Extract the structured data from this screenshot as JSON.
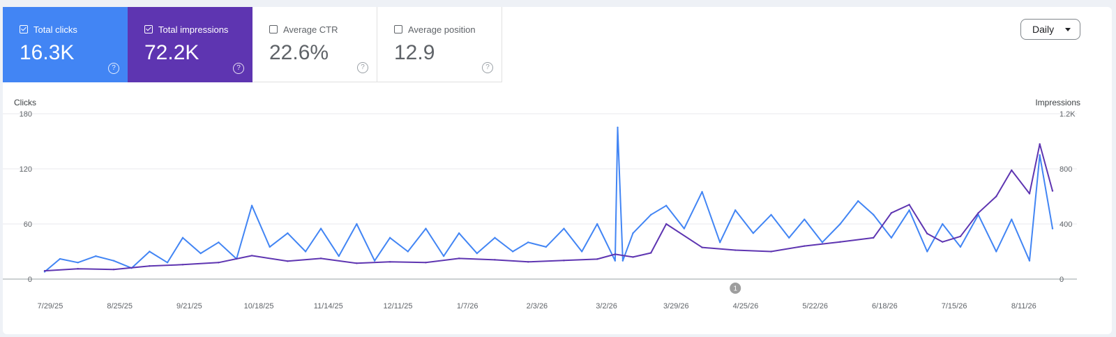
{
  "metrics": [
    {
      "label": "Total clicks",
      "value": "16.3K",
      "checked": true,
      "color": "#4285f4"
    },
    {
      "label": "Total impressions",
      "value": "72.2K",
      "checked": true,
      "color": "#5e35b1"
    },
    {
      "label": "Average CTR",
      "value": "22.6%",
      "checked": false
    },
    {
      "label": "Average position",
      "value": "12.9",
      "checked": false
    }
  ],
  "help_glyph": "?",
  "dropdown": {
    "label": "Daily",
    "icon": "chevron-down-icon"
  },
  "annotation": {
    "label": "1",
    "date": "4/25/26"
  },
  "chart_data": {
    "type": "line",
    "y_left": {
      "label": "Clicks",
      "ticks": [
        0,
        60,
        120,
        180
      ],
      "range": [
        0,
        180
      ]
    },
    "y_right": {
      "label": "Impressions",
      "ticks": [
        "0",
        "400",
        "800",
        "1.2K"
      ],
      "range": [
        0,
        1200
      ]
    },
    "x_ticks": [
      "7/29/25",
      "8/25/25",
      "9/21/25",
      "10/18/25",
      "11/14/25",
      "12/11/25",
      "1/7/26",
      "2/3/26",
      "3/2/26",
      "3/29/26",
      "4/25/26",
      "5/22/26",
      "6/18/26",
      "7/15/26",
      "8/11/26"
    ],
    "series": [
      {
        "name": "Clicks",
        "axis": "left",
        "color": "#4285f4",
        "x": [
          "7/29/25",
          "8/4/25",
          "8/11/25",
          "8/18/25",
          "8/25/25",
          "9/1/25",
          "9/8/25",
          "9/15/25",
          "9/21/25",
          "9/28/25",
          "10/5/25",
          "10/12/25",
          "10/18/25",
          "10/25/25",
          "11/1/25",
          "11/8/25",
          "11/14/25",
          "11/21/25",
          "11/28/25",
          "12/5/25",
          "12/11/25",
          "12/18/25",
          "12/25/25",
          "1/1/26",
          "1/7/26",
          "1/14/26",
          "1/21/26",
          "1/28/26",
          "2/3/26",
          "2/10/26",
          "2/17/26",
          "2/24/26",
          "3/2/26",
          "3/9/26",
          "3/10/26",
          "3/12/26",
          "3/16/26",
          "3/23/26",
          "3/29/26",
          "4/5/26",
          "4/12/26",
          "4/19/26",
          "4/25/26",
          "5/2/26",
          "5/9/26",
          "5/16/26",
          "5/22/26",
          "5/29/26",
          "6/5/26",
          "6/12/26",
          "6/18/26",
          "6/25/26",
          "7/2/26",
          "7/9/26",
          "7/15/26",
          "7/22/26",
          "7/29/26",
          "8/5/26",
          "8/11/26",
          "8/18/26",
          "8/22/26",
          "8/27/26"
        ],
        "values": [
          8,
          22,
          18,
          25,
          20,
          12,
          30,
          18,
          45,
          28,
          40,
          22,
          80,
          35,
          50,
          30,
          55,
          25,
          60,
          20,
          45,
          30,
          55,
          25,
          50,
          28,
          45,
          30,
          40,
          35,
          55,
          30,
          60,
          20,
          165,
          20,
          50,
          70,
          80,
          55,
          95,
          40,
          75,
          50,
          70,
          45,
          65,
          40,
          60,
          85,
          70,
          45,
          75,
          30,
          60,
          35,
          70,
          30,
          65,
          20,
          135,
          55
        ]
      },
      {
        "name": "Impressions",
        "axis": "right",
        "color": "#5e35b1",
        "x": [
          "7/29/25",
          "8/11/25",
          "8/25/25",
          "9/8/25",
          "9/21/25",
          "10/5/25",
          "10/18/25",
          "11/1/25",
          "11/14/25",
          "11/28/25",
          "12/11/25",
          "12/25/25",
          "1/7/26",
          "1/21/26",
          "2/3/26",
          "2/17/26",
          "3/2/26",
          "3/9/26",
          "3/16/26",
          "3/23/26",
          "3/29/26",
          "4/12/26",
          "4/25/26",
          "5/9/26",
          "5/22/26",
          "6/5/26",
          "6/18/26",
          "6/25/26",
          "7/2/26",
          "7/9/26",
          "7/15/26",
          "7/22/26",
          "7/29/26",
          "8/5/26",
          "8/11/26",
          "8/18/26",
          "8/22/26",
          "8/27/26"
        ],
        "values": [
          60,
          75,
          70,
          95,
          105,
          120,
          170,
          130,
          150,
          115,
          125,
          120,
          150,
          140,
          125,
          135,
          145,
          180,
          160,
          190,
          400,
          230,
          210,
          200,
          240,
          270,
          300,
          480,
          540,
          330,
          270,
          310,
          480,
          600,
          790,
          620,
          980,
          640
        ]
      }
    ],
    "grid": true,
    "legend": "metric-cards"
  }
}
